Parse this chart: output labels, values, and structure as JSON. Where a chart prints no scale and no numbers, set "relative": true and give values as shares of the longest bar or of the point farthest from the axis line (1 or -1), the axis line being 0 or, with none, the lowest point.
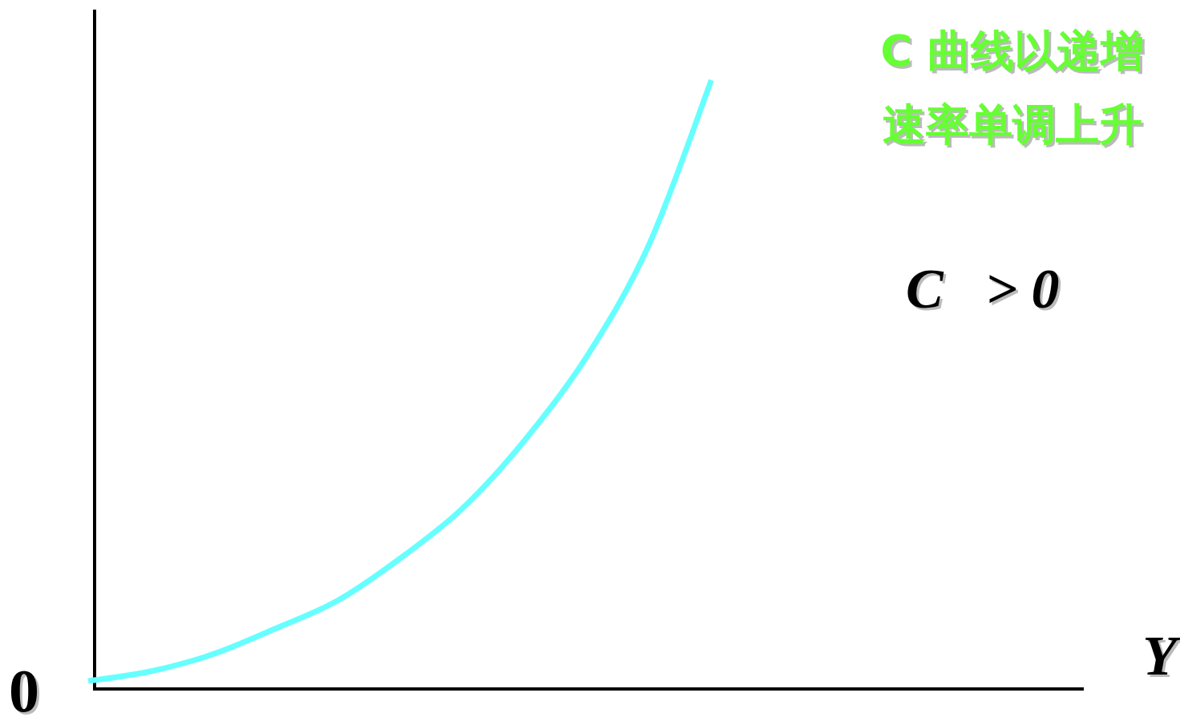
{
  "chart_data": {
    "type": "line",
    "relative": true,
    "title": "C 曲线以递增速率单调上升",
    "annotations": [
      "C   > 0",
      "0",
      "Y"
    ],
    "categories": [
      null,
      null,
      null,
      null,
      null,
      null,
      null,
      null,
      null,
      null,
      null
    ],
    "series": [
      {
        "color": "#66ffff",
        "values": [
          0.013,
          0.029,
          0.057,
          0.099,
          0.145,
          0.214,
          0.296,
          0.408,
          0.546,
          0.73,
          1
        ]
      }
    ]
  }
}
